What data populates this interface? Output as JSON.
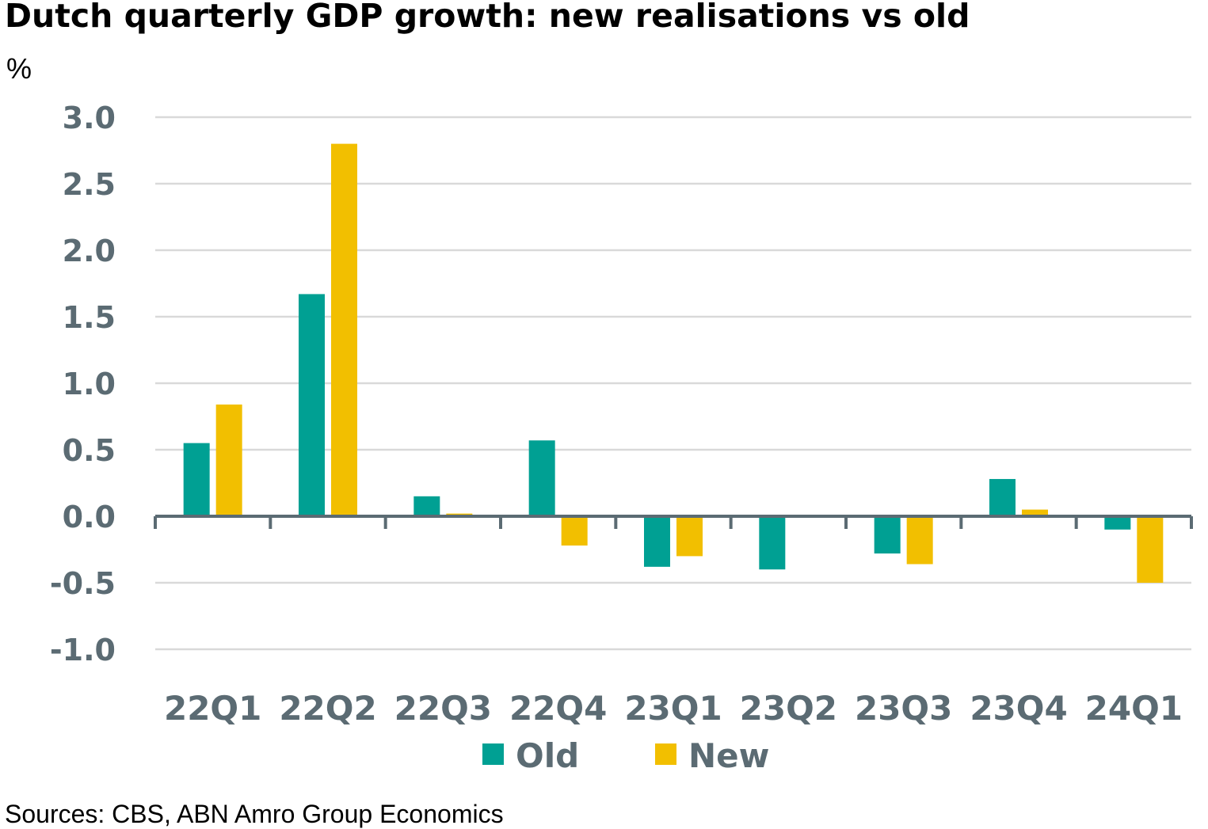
{
  "chart_data": {
    "type": "bar",
    "title": "Dutch quarterly GDP growth: new realisations vs old",
    "ylabel": "%",
    "xlabel": "",
    "categories": [
      "22Q1",
      "22Q2",
      "22Q3",
      "22Q4",
      "23Q1",
      "23Q2",
      "23Q3",
      "23Q4",
      "24Q1"
    ],
    "series": [
      {
        "name": "Old",
        "color": "#00a093",
        "values": [
          0.55,
          1.67,
          0.15,
          0.57,
          -0.38,
          -0.4,
          -0.28,
          0.28,
          -0.1
        ]
      },
      {
        "name": "New",
        "color": "#f2bf00",
        "values": [
          0.84,
          2.8,
          0.02,
          -0.22,
          -0.3,
          0.0,
          -0.36,
          0.05,
          -0.5
        ]
      }
    ],
    "ylim": [
      -1.0,
      3.0
    ],
    "yticks": [
      "3.0",
      "2.5",
      "2.0",
      "1.5",
      "1.0",
      "0.5",
      "0.0",
      "-0.5",
      "-1.0"
    ],
    "grid": true,
    "legend_position": "bottom",
    "source": "Sources: CBS, ABN Amro Group Economics"
  }
}
